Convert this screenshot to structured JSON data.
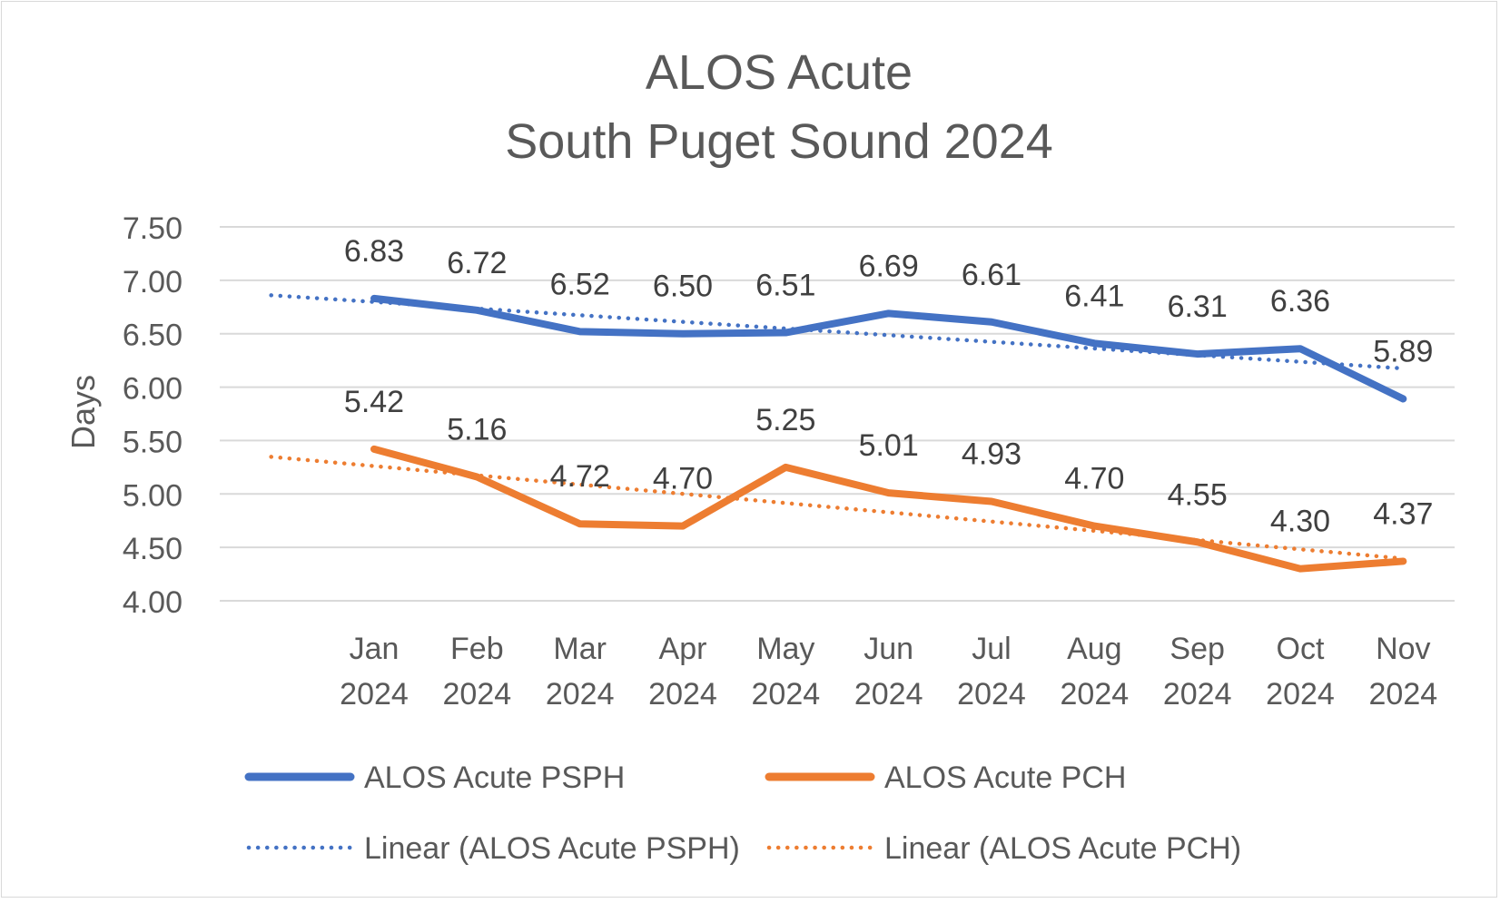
{
  "chart_data": {
    "type": "line",
    "title_lines": [
      "ALOS Acute",
      "South Puget Sound 2024"
    ],
    "xlabel": "",
    "ylabel": "Days",
    "ylim": [
      4.0,
      7.5
    ],
    "yticks": [
      "4.00",
      "4.50",
      "5.00",
      "5.50",
      "6.00",
      "6.50",
      "7.00",
      "7.50"
    ],
    "grid": true,
    "legend_position": "bottom",
    "categories": [
      [
        "Jan",
        "2024"
      ],
      [
        "Feb",
        "2024"
      ],
      [
        "Mar",
        "2024"
      ],
      [
        "Apr",
        "2024"
      ],
      [
        "May",
        "2024"
      ],
      [
        "Jun",
        "2024"
      ],
      [
        "Jul",
        "2024"
      ],
      [
        "Aug",
        "2024"
      ],
      [
        "Sep",
        "2024"
      ],
      [
        "Oct",
        "2024"
      ],
      [
        "Nov",
        "2024"
      ]
    ],
    "series": [
      {
        "name": "ALOS Acute PSPH",
        "color": "#4472C4",
        "values": [
          6.83,
          6.72,
          6.52,
          6.5,
          6.51,
          6.69,
          6.61,
          6.41,
          6.31,
          6.36,
          5.89
        ],
        "labels": [
          "6.83",
          "6.72",
          "6.52",
          "6.50",
          "6.51",
          "6.69",
          "6.61",
          "6.41",
          "6.31",
          "6.36",
          "5.89"
        ]
      },
      {
        "name": "ALOS Acute PCH",
        "color": "#ED7D31",
        "values": [
          5.42,
          5.16,
          4.72,
          4.7,
          5.25,
          5.01,
          4.93,
          4.7,
          4.55,
          4.3,
          4.37
        ],
        "labels": [
          "5.42",
          "5.16",
          "4.72",
          "4.70",
          "5.25",
          "5.01",
          "4.93",
          "4.70",
          "4.55",
          "4.30",
          "4.37"
        ]
      }
    ],
    "trendlines": [
      {
        "name": "Linear (ALOS Acute PSPH)",
        "type": "linear",
        "color": "#4472C4",
        "of_series": 0
      },
      {
        "name": "Linear (ALOS Acute PCH)",
        "type": "linear",
        "color": "#ED7D31",
        "of_series": 1
      }
    ]
  }
}
